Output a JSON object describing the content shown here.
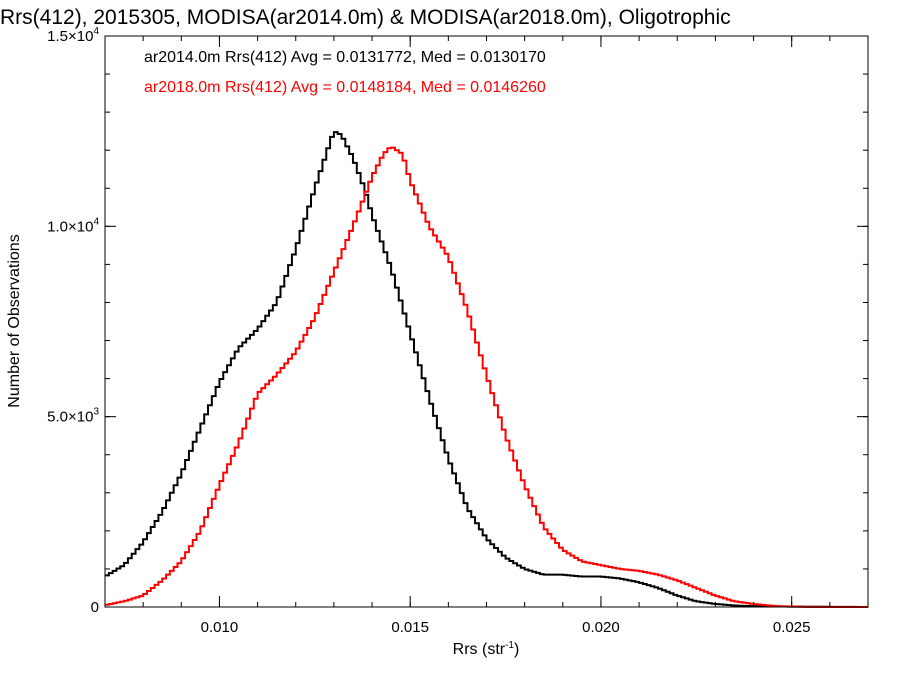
{
  "chart_data": {
    "type": "line",
    "title": "Rrs(412), 2015305, MODISA(ar2014.0m) & MODISA(ar2018.0m), Oligotrophic",
    "xlabel": "Rrs (str",
    "xlabel_sup": "-1",
    "xlabel_end": ")",
    "ylabel": "Number of Observations",
    "xlim": [
      0.007,
      0.027
    ],
    "ylim": [
      0,
      15000
    ],
    "xticks": [
      {
        "value": 0.01,
        "label": "0.010"
      },
      {
        "value": 0.015,
        "label": "0.015"
      },
      {
        "value": 0.02,
        "label": "0.020"
      },
      {
        "value": 0.025,
        "label": "0.025"
      }
    ],
    "yticks": [
      {
        "value": 0,
        "label": "0",
        "exp": ""
      },
      {
        "value": 5000,
        "label": "5.0×10",
        "exp": "3"
      },
      {
        "value": 10000,
        "label": "1.0×10",
        "exp": "4"
      },
      {
        "value": 15000,
        "label": "1.5×10",
        "exp": "4"
      }
    ],
    "grid": false,
    "legend_position": "top-left",
    "series": [
      {
        "name": "ar2014.0m",
        "color": "#000000",
        "legend": "ar2014.0m Rrs(412) Avg = 0.0131772, Med = 0.0130170",
        "x": [
          0.007,
          0.0075,
          0.008,
          0.0085,
          0.009,
          0.0095,
          0.01,
          0.0105,
          0.011,
          0.0115,
          0.012,
          0.0125,
          0.0128,
          0.013,
          0.0132,
          0.0135,
          0.0138,
          0.014,
          0.0145,
          0.015,
          0.0155,
          0.016,
          0.0165,
          0.017,
          0.0175,
          0.018,
          0.0185,
          0.019,
          0.0195,
          0.02,
          0.0205,
          0.021,
          0.0215,
          0.022,
          0.0225,
          0.023,
          0.0235,
          0.024,
          0.025,
          0.026,
          0.027
        ],
        "y": [
          800,
          1100,
          1700,
          2500,
          3500,
          4700,
          5900,
          6800,
          7300,
          8000,
          9400,
          11000,
          11900,
          12500,
          12400,
          11800,
          11000,
          10300,
          8900,
          7200,
          5500,
          3900,
          2600,
          1800,
          1300,
          1000,
          850,
          850,
          800,
          800,
          750,
          650,
          500,
          300,
          150,
          80,
          40,
          20,
          10,
          5,
          0
        ]
      },
      {
        "name": "ar2018.0m",
        "color": "#ff0000",
        "legend": "ar2018.0m Rrs(412) Avg = 0.0148184, Med = 0.0146260",
        "x": [
          0.007,
          0.0075,
          0.008,
          0.0085,
          0.009,
          0.0095,
          0.01,
          0.0105,
          0.011,
          0.0115,
          0.012,
          0.0125,
          0.013,
          0.0135,
          0.014,
          0.0143,
          0.0145,
          0.0148,
          0.015,
          0.0155,
          0.016,
          0.0165,
          0.017,
          0.0175,
          0.018,
          0.0185,
          0.019,
          0.0195,
          0.02,
          0.0205,
          0.021,
          0.0215,
          0.022,
          0.0225,
          0.023,
          0.0235,
          0.024,
          0.0245,
          0.025,
          0.0255,
          0.026,
          0.027
        ],
        "y": [
          50,
          150,
          300,
          700,
          1200,
          2000,
          3200,
          4300,
          5600,
          6100,
          6700,
          7600,
          8800,
          10000,
          11300,
          11900,
          12100,
          11900,
          11200,
          10000,
          9200,
          7800,
          6100,
          4500,
          3200,
          2100,
          1500,
          1200,
          1100,
          1000,
          950,
          850,
          700,
          500,
          300,
          150,
          80,
          30,
          10,
          5,
          0,
          0
        ]
      }
    ]
  }
}
